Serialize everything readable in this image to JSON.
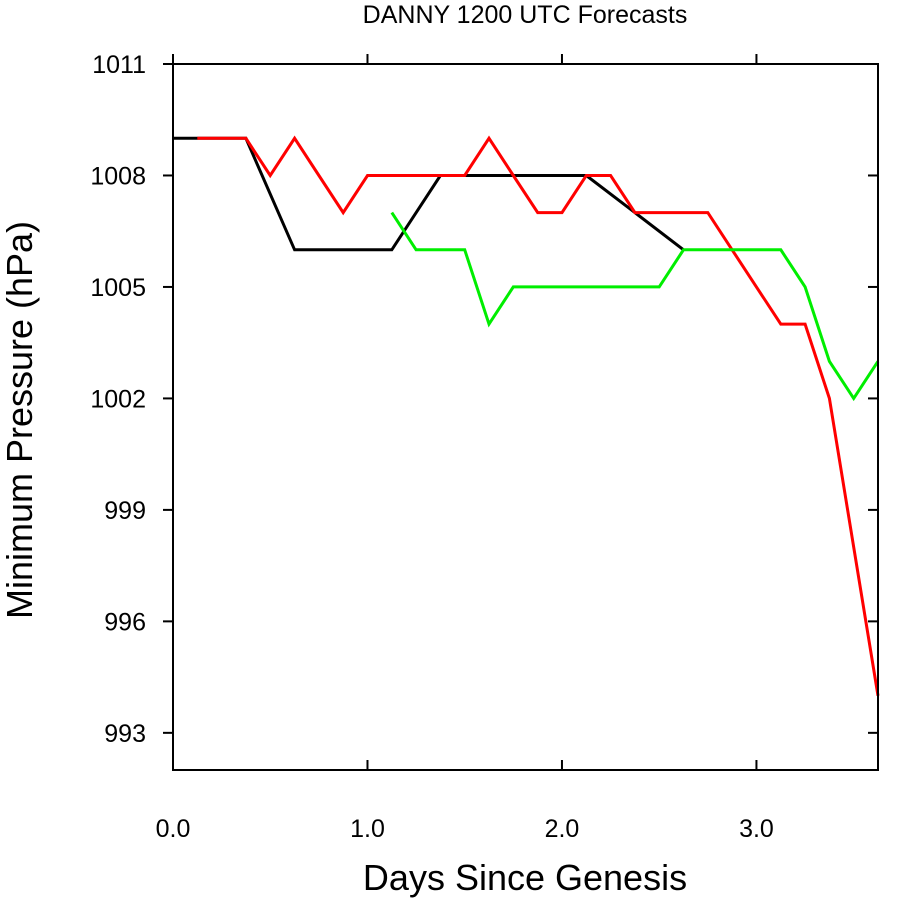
{
  "chart_data": {
    "type": "line",
    "title": "DANNY 1200 UTC Forecasts",
    "xlabel": "Days Since Genesis",
    "ylabel": "Minimum Pressure (hPa)",
    "xlim": [
      0,
      3.625
    ],
    "ylim": [
      992,
      1011
    ],
    "xticks": [
      0,
      1,
      2,
      3
    ],
    "xtick_labels": [
      "0.0",
      "1.0",
      "2.0",
      "3.0"
    ],
    "yticks": [
      993,
      996,
      999,
      1002,
      1005,
      1008,
      1011
    ],
    "ytick_labels": [
      "993",
      "996",
      "999",
      "1002",
      "1005",
      "1008",
      "1011"
    ],
    "grid": false,
    "legend": false,
    "series": [
      {
        "color": "#000000",
        "x": [
          0,
          0.125,
          0.375,
          0.625,
          0.875,
          1.125,
          1.375,
          1.625,
          1.875,
          2.125,
          2.375,
          2.625
        ],
        "values": [
          1009,
          1009,
          1009,
          1006,
          1006,
          1006,
          1008,
          1008,
          1008,
          1008,
          1007,
          1006
        ]
      },
      {
        "color": "#ff0000",
        "x": [
          0.125,
          0.25,
          0.375,
          0.5,
          0.625,
          0.75,
          0.875,
          1.0,
          1.125,
          1.25,
          1.375,
          1.5,
          1.625,
          1.75,
          1.875,
          2.0,
          2.125,
          2.25,
          2.375,
          2.5,
          2.625,
          2.75,
          2.875,
          3.0,
          3.125,
          3.25,
          3.375,
          3.5,
          3.625
        ],
        "values": [
          1009,
          1009,
          1009,
          1008,
          1009,
          1008,
          1007,
          1008,
          1008,
          1008,
          1008,
          1008,
          1009,
          1008,
          1007,
          1007,
          1008,
          1008,
          1007,
          1007,
          1007,
          1007,
          1006,
          1005,
          1004,
          1004,
          1002,
          998,
          994
        ]
      },
      {
        "color": "#00ee00",
        "x": [
          1.125,
          1.25,
          1.375,
          1.5,
          1.625,
          1.75,
          1.875,
          2.0,
          2.125,
          2.25,
          2.375,
          2.5,
          2.625,
          2.75,
          2.875,
          3.0,
          3.125,
          3.25,
          3.375,
          3.5,
          3.625
        ],
        "values": [
          1007,
          1006,
          1006,
          1006,
          1004,
          1005,
          1005,
          1005,
          1005,
          1005,
          1005,
          1005,
          1006,
          1006,
          1006,
          1006,
          1006,
          1005,
          1003,
          1002,
          1003
        ]
      }
    ]
  }
}
